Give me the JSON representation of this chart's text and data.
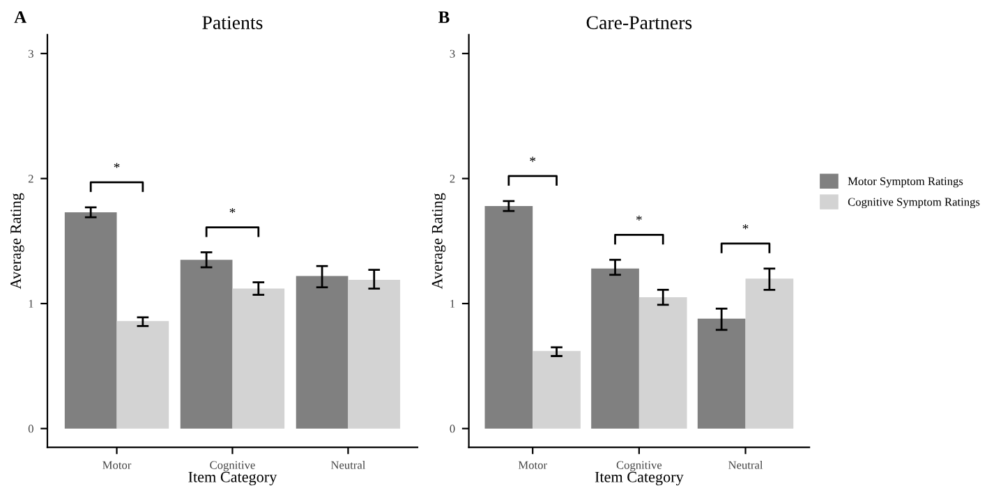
{
  "chart_data": [
    {
      "type": "bar",
      "title": "Patients",
      "xlabel": "Item Category",
      "ylabel": "Average Rating",
      "categories": [
        "Motor",
        "Cognitive",
        "Neutral"
      ],
      "series": [
        {
          "name": "Motor Symptom Ratings",
          "color": "#808080",
          "values": [
            1.73,
            1.35,
            1.22
          ],
          "errors": [
            [
              1.69,
              1.77
            ],
            [
              1.29,
              1.41
            ],
            [
              1.13,
              1.3
            ]
          ]
        },
        {
          "name": "Cognitive Symptom Ratings",
          "color": "#d3d3d3",
          "values": [
            0.86,
            1.12,
            1.19
          ],
          "errors": [
            [
              0.82,
              0.89
            ],
            [
              1.07,
              1.17
            ],
            [
              1.12,
              1.27
            ]
          ]
        }
      ],
      "ylim": [
        -0.15,
        3.15
      ],
      "yticks": [
        0,
        1,
        2,
        3
      ],
      "grid": false,
      "legend": "right",
      "annotations": [
        "A",
        "*",
        "*"
      ]
    },
    {
      "type": "bar",
      "title": "Care-Partners",
      "xlabel": "Item Category",
      "ylabel": "Average Rating",
      "categories": [
        "Motor",
        "Cognitive",
        "Neutral"
      ],
      "series": [
        {
          "name": "Motor Symptom Ratings",
          "color": "#808080",
          "values": [
            1.78,
            1.28,
            0.88
          ],
          "errors": [
            [
              1.74,
              1.82
            ],
            [
              1.23,
              1.35
            ],
            [
              0.79,
              0.96
            ]
          ]
        },
        {
          "name": "Cognitive Symptom Ratings",
          "color": "#d3d3d3",
          "values": [
            0.62,
            1.05,
            1.2
          ],
          "errors": [
            [
              0.58,
              0.65
            ],
            [
              0.99,
              1.11
            ],
            [
              1.11,
              1.28
            ]
          ]
        }
      ],
      "ylim": [
        -0.15,
        3.15
      ],
      "yticks": [
        0,
        1,
        2,
        3
      ],
      "grid": false,
      "legend": "right",
      "annotations": [
        "B",
        "*",
        "*",
        "*"
      ]
    }
  ]
}
